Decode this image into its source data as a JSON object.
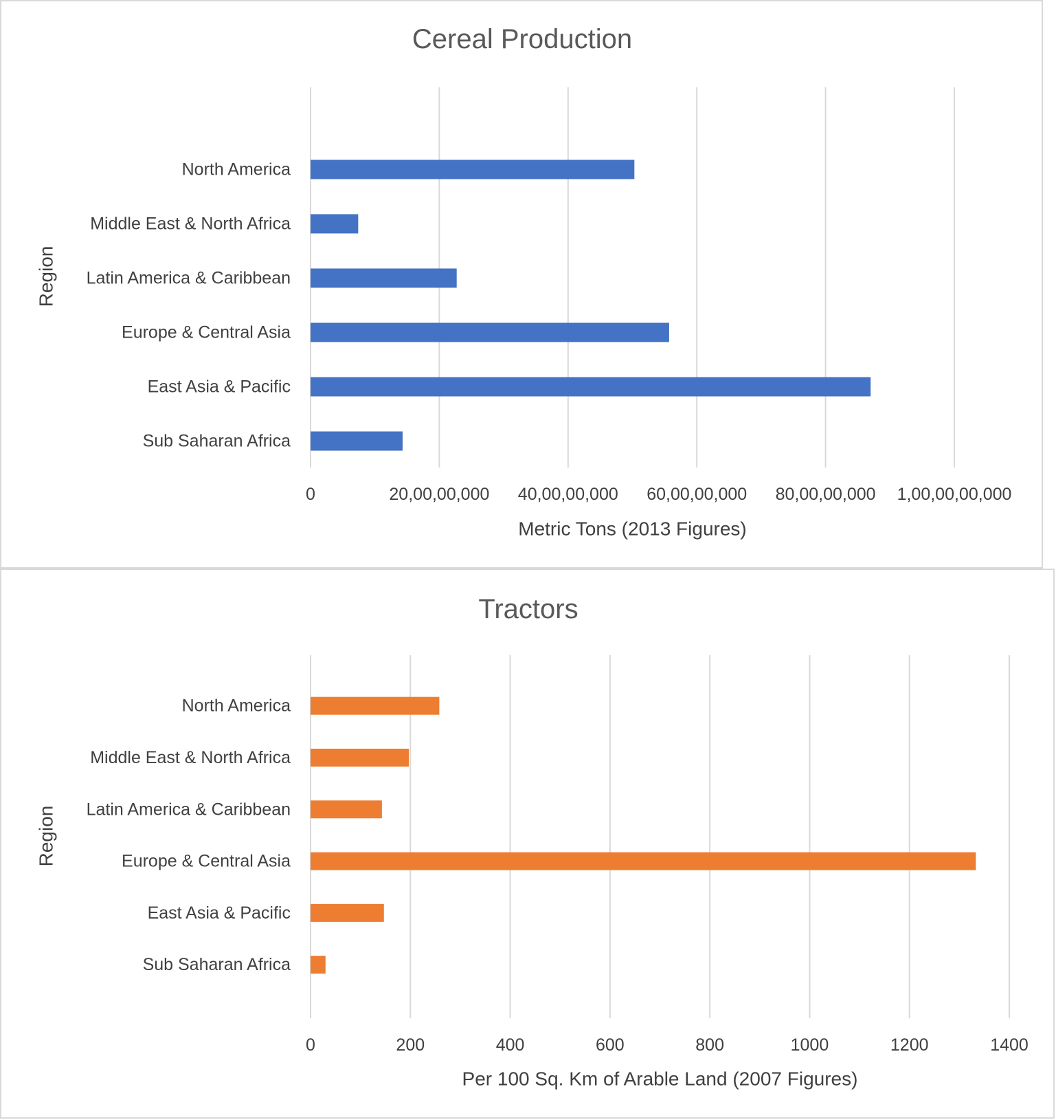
{
  "chart_data": [
    {
      "type": "bar",
      "orientation": "horizontal",
      "title": "Cereal Production",
      "xlabel": "Metric Tons (2013 Figures)",
      "ylabel": "Region",
      "categories": [
        "Sub Saharan Africa",
        "East Asia & Pacific",
        "Europe & Central Asia",
        "Latin America & Caribbean",
        "Middle East & North Africa",
        "North America"
      ],
      "values": [
        143000000,
        870000000,
        557000000,
        227000000,
        74000000,
        503000000
      ],
      "xlim": [
        0,
        1000000000
      ],
      "ticks": [
        0,
        200000000,
        400000000,
        600000000,
        800000000,
        1000000000
      ],
      "tick_labels": [
        "0",
        "20,00,00,000",
        "40,00,00,000",
        "60,00,00,000",
        "80,00,00,000",
        "1,00,00,00,000"
      ],
      "color": "#4472C4",
      "grid": true
    },
    {
      "type": "bar",
      "orientation": "horizontal",
      "title": "Tractors",
      "xlabel": "Per 100 Sq. Km of Arable Land (2007 Figures)",
      "ylabel": "Region",
      "categories": [
        "Sub Saharan Africa",
        "East Asia & Pacific",
        "Europe & Central Asia",
        "Latin America & Caribbean",
        "Middle East & North Africa",
        "North America"
      ],
      "values": [
        30,
        147,
        1333,
        143,
        197,
        258
      ],
      "xlim": [
        0,
        1400
      ],
      "ticks": [
        0,
        200,
        400,
        600,
        800,
        1000,
        1200,
        1400
      ],
      "tick_labels": [
        "0",
        "200",
        "400",
        "600",
        "800",
        "1000",
        "1200",
        "1400"
      ],
      "color": "#ED7D31",
      "grid": true
    }
  ]
}
